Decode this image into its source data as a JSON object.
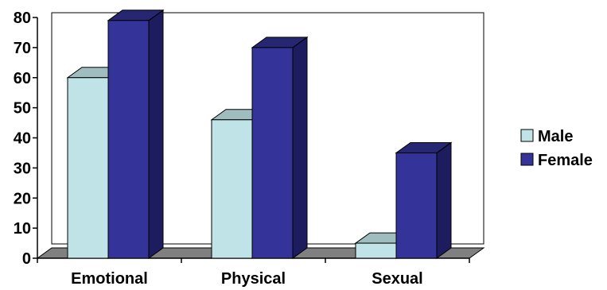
{
  "chart_data": {
    "type": "bar",
    "categories": [
      "Emotional",
      "Physical",
      "Sexual"
    ],
    "series": [
      {
        "name": "Male",
        "values": [
          60,
          46,
          5
        ],
        "color": "#bfe3e6",
        "side_color": "#8fb4b8",
        "top_color": "#9fbcbf"
      },
      {
        "name": "Female",
        "values": [
          79,
          70,
          35
        ],
        "color": "#333399",
        "side_color": "#1c1c5e",
        "top_color": "#262673"
      }
    ],
    "yticks": [
      0,
      10,
      20,
      30,
      40,
      50,
      60,
      70,
      80
    ],
    "ylim": [
      0,
      80
    ],
    "grid": false,
    "legend_position": "right",
    "floor_color": "#808080"
  }
}
